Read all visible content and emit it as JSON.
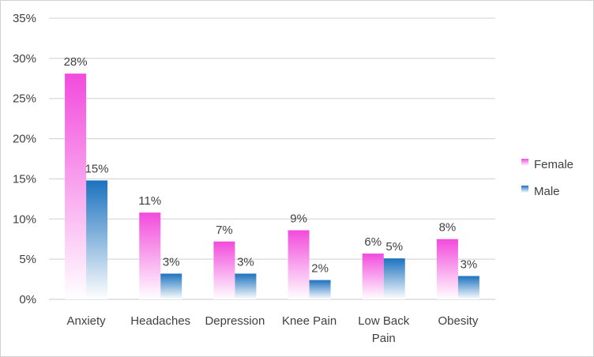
{
  "chart_data": {
    "type": "bar",
    "categories": [
      [
        "Anxiety"
      ],
      [
        "Headaches"
      ],
      [
        "Depression"
      ],
      [
        "Knee Pain"
      ],
      [
        "Low Back",
        "Pain"
      ],
      [
        "Obesity"
      ]
    ],
    "series": [
      {
        "name": "Female",
        "values": [
          28,
          11,
          7,
          9,
          6,
          8
        ],
        "labels": [
          "28%",
          "11%",
          "7%",
          "9%",
          "6%",
          "8%"
        ],
        "color_top": "#f24bdc",
        "color_bottom": "#ffffff"
      },
      {
        "name": "Male",
        "values": [
          15,
          3,
          3,
          2,
          5,
          3
        ],
        "labels": [
          "15%",
          "3%",
          "3%",
          "2%",
          "5%",
          "3%"
        ],
        "color_top": "#1c72bf",
        "color_bottom": "#ffffff"
      }
    ],
    "bar_heights": {
      "Female": [
        28.1,
        10.8,
        7.2,
        8.6,
        5.7,
        7.5
      ],
      "Male": [
        14.8,
        3.2,
        3.2,
        2.4,
        5.1,
        2.9
      ]
    },
    "ylim": [
      0,
      35
    ],
    "yticks": [
      0,
      5,
      10,
      15,
      20,
      25,
      30,
      35
    ],
    "ytick_labels": [
      "0%",
      "5%",
      "10%",
      "15%",
      "20%",
      "25%",
      "30%",
      "35%"
    ],
    "grid": true,
    "legend_position": "right",
    "title": "",
    "xlabel": "",
    "ylabel": ""
  }
}
